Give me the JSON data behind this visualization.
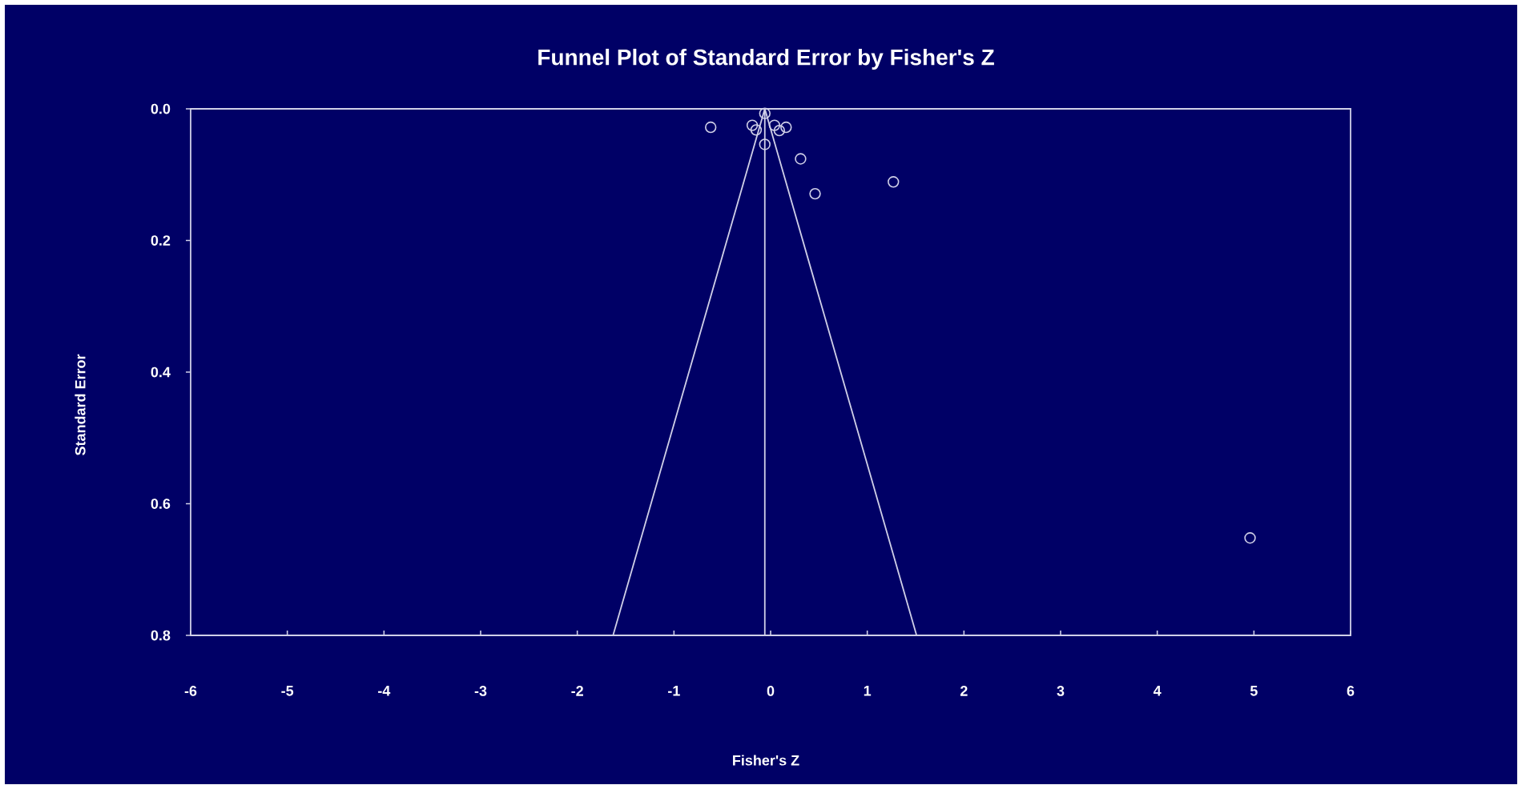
{
  "chart_data": {
    "type": "scatter",
    "title": "Funnel Plot of Standard Error by Fisher's Z",
    "xlabel": "Fisher's Z",
    "ylabel": "Standard Error",
    "xlim": [
      -6,
      6
    ],
    "ylim": [
      0.8,
      0
    ],
    "xticks": [
      -6,
      -5,
      -4,
      -3,
      -2,
      -1,
      0,
      1,
      2,
      3,
      4,
      5,
      6
    ],
    "yticks": [
      {
        "value": 0,
        "label": "0.0"
      },
      {
        "value": 0.2,
        "label": "0.2"
      },
      {
        "value": 0.4,
        "label": "0.4"
      },
      {
        "value": 0.6,
        "label": "0.6"
      },
      {
        "value": 0.8,
        "label": "0.8"
      }
    ],
    "grid": false,
    "series": [
      {
        "marker": "circle",
        "color": "#d0d0e8",
        "x": [
          -0.62,
          -0.19,
          -0.15,
          -0.06,
          0.04,
          0.09,
          0.16,
          -0.06,
          0.31,
          0.46,
          1.27,
          4.96
        ],
        "values": [
          0.028,
          0.025,
          0.032,
          0.007,
          0.025,
          0.033,
          0.028,
          0.054,
          0.076,
          0.129,
          0.111,
          0.652
        ]
      },
      {
        "type": "line",
        "marker": "none",
        "color": "#d0d0e8",
        "x": [
          -0.06,
          -1.63
        ],
        "values": [
          0,
          0.8
        ]
      },
      {
        "type": "line",
        "marker": "none",
        "color": "#d0d0e8",
        "x": [
          -0.06,
          1.51
        ],
        "values": [
          0,
          0.8
        ]
      }
    ],
    "ref_lines": [
      {
        "axis": "x",
        "value": -0.06,
        "color": "#d0d0e8"
      }
    ]
  }
}
